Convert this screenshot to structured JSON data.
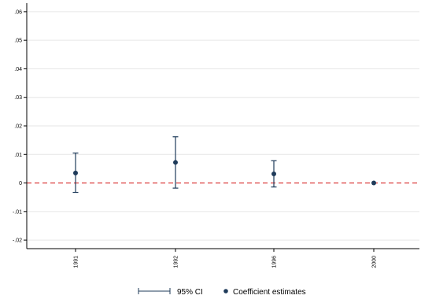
{
  "chart_data": {
    "type": "scatter",
    "title": "",
    "xlabel": "",
    "ylabel": "",
    "categories": [
      "1991",
      "1992",
      "1996",
      "2000"
    ],
    "series": [
      {
        "name": "Coefficient estimates",
        "values": [
          0.0035,
          0.0072,
          0.0032,
          0.0
        ]
      },
      {
        "name": "95% CI",
        "lower": [
          -0.0033,
          -0.0018,
          -0.0014,
          0.0
        ],
        "upper": [
          0.0105,
          0.0162,
          0.0078,
          0.0
        ]
      }
    ],
    "ylim": [
      -0.023,
      0.063
    ],
    "yticks": [
      -0.02,
      -0.01,
      0,
      0.01,
      0.02,
      0.03,
      0.04,
      0.05,
      0.06
    ],
    "ytick_labels": [
      "-.02",
      "-.01",
      "0",
      ".01",
      ".02",
      ".03",
      ".04",
      ".05",
      ".06"
    ],
    "reference_line": {
      "y": 0,
      "style": "dashed",
      "color": "#d62728"
    },
    "grid": true,
    "legend": {
      "placement": "bottom",
      "ci_label": "95% CI",
      "point_label": "Coefficient estimates"
    },
    "colors": {
      "marker": "#1f3b5a",
      "grid": "#e6e6e6",
      "axis": "#000000"
    }
  }
}
